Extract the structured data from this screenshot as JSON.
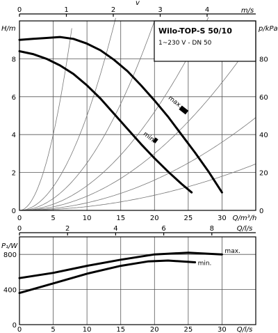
{
  "header": {
    "model": "Wilo-TOP-S 50/10",
    "supply": "1~230 V - DN 50"
  },
  "chart_data": [
    {
      "type": "line",
      "title": "Wilo-TOP-S 50/10",
      "ylabel": "H/m",
      "ylabel_right": "p/kPa",
      "xlabel": "Q/m³/h",
      "top_axis_label": "v",
      "top_axis_unit": "m/s",
      "xlim": [
        0,
        35
      ],
      "ylim": [
        0,
        10
      ],
      "x_ticks": [
        0,
        5,
        10,
        15,
        20,
        25,
        30
      ],
      "y_ticks": [
        0,
        2,
        4,
        6,
        8
      ],
      "y_right_ticks": [
        0,
        20,
        40,
        60,
        80
      ],
      "top_ticks": [
        0,
        1,
        2,
        3,
        4
      ],
      "grid": true,
      "series": [
        {
          "name": "max.",
          "x": [
            0,
            2,
            4,
            6,
            8,
            10,
            12,
            14,
            16,
            18,
            20,
            22,
            24,
            26,
            28,
            30
          ],
          "y": [
            9.0,
            9.05,
            9.1,
            9.15,
            9.05,
            8.8,
            8.45,
            7.95,
            7.35,
            6.6,
            5.8,
            4.95,
            4.0,
            3.05,
            2.05,
            0.95
          ]
        },
        {
          "name": "min.",
          "x": [
            0,
            2,
            4,
            6,
            8,
            10,
            12,
            14,
            16,
            18,
            20,
            22,
            24,
            25.5
          ],
          "y": [
            8.4,
            8.25,
            8.0,
            7.65,
            7.2,
            6.6,
            5.9,
            5.1,
            4.3,
            3.5,
            2.75,
            2.05,
            1.4,
            0.95
          ]
        }
      ],
      "labels": [
        {
          "text": "max.",
          "x": 22,
          "y": 5.9
        },
        {
          "text": "min.",
          "x": 18.3,
          "y": 4.0
        }
      ]
    },
    {
      "type": "line",
      "ylabel": "P₁/W",
      "xlabel": "Q/l/s",
      "top_axis_label": "Q/l/s",
      "xlim": [
        0,
        35
      ],
      "ylim": [
        0,
        1000
      ],
      "x_ticks": [
        0,
        5,
        10,
        15,
        20,
        25,
        30
      ],
      "y_ticks": [
        0,
        400,
        800
      ],
      "top_ticks": [
        0,
        2,
        4,
        6,
        8
      ],
      "grid": true,
      "series": [
        {
          "name": "max.",
          "x": [
            0,
            5,
            10,
            15,
            20,
            25,
            30
          ],
          "y": [
            530,
            590,
            670,
            740,
            800,
            820,
            800
          ]
        },
        {
          "name": "min.",
          "x": [
            0,
            5,
            10,
            15,
            19,
            22,
            26
          ],
          "y": [
            360,
            470,
            580,
            670,
            720,
            730,
            710
          ]
        }
      ]
    }
  ]
}
